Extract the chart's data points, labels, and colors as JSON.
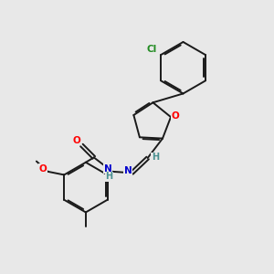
{
  "bg_color": "#e8e8e8",
  "bond_color": "#1a1a1a",
  "atom_colors": {
    "O": "#ff0000",
    "N": "#0000cc",
    "Cl": "#228b22",
    "H": "#4a9090",
    "C": "#1a1a1a"
  },
  "lw": 1.4,
  "fs": 7.5
}
